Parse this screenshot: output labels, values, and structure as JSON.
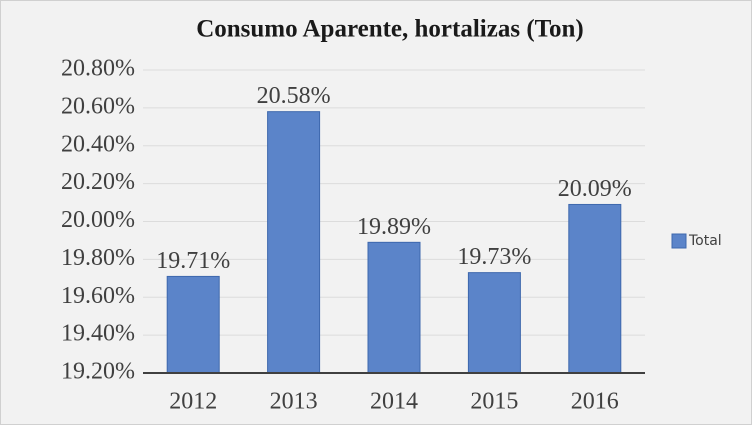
{
  "chart_data": {
    "type": "bar",
    "title": "Consumo Aparente, hortalizas (Ton)",
    "categories": [
      "2012",
      "2013",
      "2014",
      "2015",
      "2016"
    ],
    "series": [
      {
        "name": "Total",
        "color": "#5b84c9",
        "values": [
          19.71,
          20.58,
          19.89,
          19.73,
          20.09
        ],
        "value_labels": [
          "19.71%",
          "20.58%",
          "19.89%",
          "19.73%",
          "20.09%"
        ]
      }
    ],
    "ylim": [
      19.2,
      20.8
    ],
    "yticks": [
      {
        "value": 19.2,
        "label": "19.20%"
      },
      {
        "value": 19.4,
        "label": "19.40%"
      },
      {
        "value": 19.6,
        "label": "19.60%"
      },
      {
        "value": 19.8,
        "label": "19.80%"
      },
      {
        "value": 20.0,
        "label": "20.00%"
      },
      {
        "value": 20.2,
        "label": "20.20%"
      },
      {
        "value": 20.4,
        "label": "20.40%"
      },
      {
        "value": 20.6,
        "label": "20.60%"
      },
      {
        "value": 20.8,
        "label": "20.80%"
      }
    ],
    "grid": true,
    "legend": "right"
  }
}
